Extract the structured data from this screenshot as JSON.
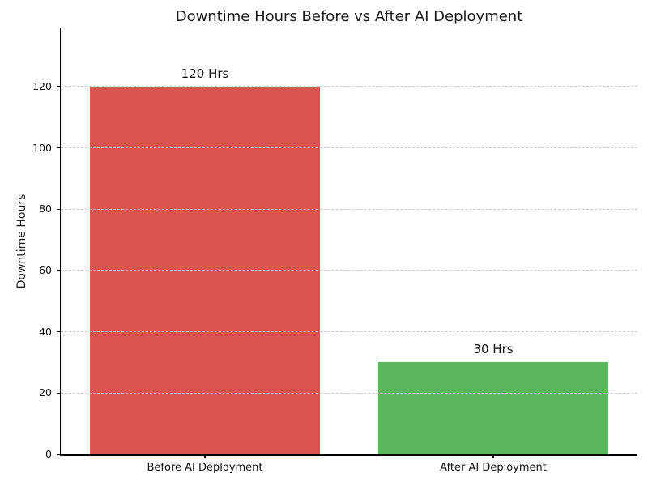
{
  "chart_data": {
    "type": "bar",
    "title": "Downtime Hours Before vs After AI Deployment",
    "xlabel": "",
    "ylabel": "Downtime Hours",
    "categories": [
      "Before AI Deployment",
      "After AI Deployment"
    ],
    "values": [
      120,
      30
    ],
    "bar_value_labels": [
      "120 Hrs",
      "30 Hrs"
    ],
    "bar_colors": [
      "#d9534f",
      "#5cb85c"
    ],
    "yticks": [
      0,
      20,
      40,
      60,
      80,
      100,
      120
    ],
    "ylim": [
      0,
      139
    ],
    "grid": "horizontal-dashed",
    "grid_color": "#cccccc",
    "axis_color": "#000000",
    "title_color": "#1a1a1a",
    "background_color": "#ffffff",
    "legend": "none",
    "bar_relative_width": 0.8
  }
}
